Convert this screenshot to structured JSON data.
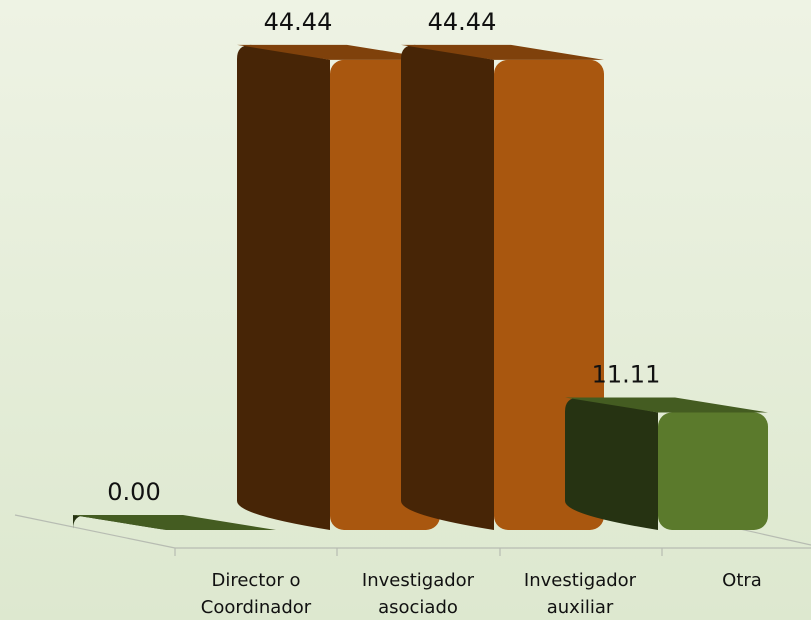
{
  "chart_data": {
    "type": "bar3d",
    "categories": [
      "Director o\nCoordinador",
      "Investigador\nasociado",
      "Investigador\nauxiliar",
      "Otra"
    ],
    "values": [
      0,
      44.44,
      44.44,
      11.11
    ],
    "value_labels": [
      "0.00",
      "44.44",
      "44.44",
      "11.11"
    ],
    "colors": [
      "#5b7a2c",
      "#a9570f",
      "#a9570f",
      "#5b7a2c"
    ]
  }
}
